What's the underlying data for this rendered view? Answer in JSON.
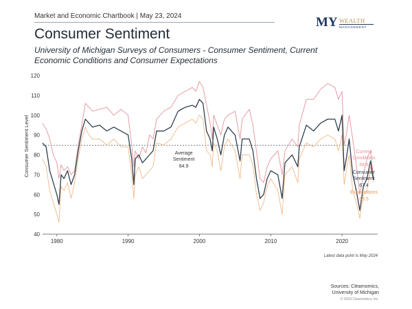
{
  "header": {
    "chartbook": "Market and Economic Chartbook | May 23, 2024",
    "title": "Consumer Sentiment",
    "subtitle": "University of Michigan Surveys of Consumers - Consumer Sentiment, Current Economic Conditions and Consumer Expectations"
  },
  "logo": {
    "my": "MY",
    "wealth": "WEALTH",
    "management": "MANAGEMENT"
  },
  "footer": {
    "note": "Latest data point is May 2024",
    "sources_line1": "Sources: Clearnomics,",
    "sources_line2": "University of Michigan",
    "copyright": "© 2024 Clearnomics, Inc."
  },
  "chart_data": {
    "type": "line",
    "title": "",
    "xlabel": "",
    "ylabel": "Consumer Sentiment Level",
    "xlim": [
      1978,
      2025
    ],
    "ylim": [
      40,
      120
    ],
    "yticks": [
      40,
      50,
      60,
      70,
      80,
      90,
      100,
      110,
      120
    ],
    "xticks": [
      1980,
      1990,
      2000,
      2010,
      2020
    ],
    "grid": false,
    "colors": {
      "current": "#e2929a",
      "sentiment": "#2f3d4c",
      "expectations": "#f0b98a",
      "average": "#4b5866"
    },
    "average": {
      "value": 84.9,
      "label_line1": "Average",
      "label_line2": "Sentiment",
      "value_label": "84.9"
    },
    "end_labels": [
      {
        "series": "current",
        "line1": "Current",
        "line2": "Conditions",
        "value": "68.8"
      },
      {
        "series": "sentiment",
        "line1": "Consumer",
        "line2": "Sentiment",
        "value": "67.4"
      },
      {
        "series": "expectations",
        "line1": "Expectations",
        "line2": "",
        "value": "66.5"
      }
    ],
    "x": [
      1978,
      1978.5,
      1979,
      1979.5,
      1980,
      1980.3,
      1980.6,
      1981,
      1981.5,
      1982,
      1982.5,
      1983,
      1983.5,
      1984,
      1984.5,
      1985,
      1986,
      1987,
      1988,
      1989,
      1990,
      1990.5,
      1990.8,
      1991,
      1991.5,
      1992,
      1992.5,
      1993,
      1993.5,
      1994,
      1995,
      1996,
      1997,
      1998,
      1999,
      1999.5,
      2000,
      2000.5,
      2001,
      2001.5,
      2001.8,
      2002,
      2002.5,
      2003,
      2003.5,
      2004,
      2005,
      2005.7,
      2006,
      2007,
      2007.5,
      2008,
      2008.5,
      2009,
      2009.5,
      2010,
      2011,
      2011.6,
      2012,
      2013,
      2013.8,
      2014,
      2015,
      2016,
      2017,
      2018,
      2019,
      2019.5,
      2020,
      2020.3,
      2020.6,
      2021,
      2021.5,
      2022,
      2022.5,
      2023,
      2023.5,
      2024,
      2024.4
    ],
    "series": [
      {
        "key": "current",
        "values": [
          96,
          93,
          88,
          80,
          76,
          68,
          75,
          72,
          74,
          70,
          72,
          85,
          95,
          106,
          104,
          102,
          103,
          104,
          100,
          103,
          100,
          85,
          74,
          82,
          78,
          84,
          81,
          90,
          88,
          98,
          102,
          104,
          110,
          112,
          114,
          112,
          117,
          114,
          105,
          96,
          88,
          100,
          95,
          90,
          98,
          100,
          102,
          88,
          98,
          103,
          95,
          82,
          68,
          66,
          74,
          78,
          82,
          70,
          82,
          88,
          84,
          95,
          108,
          108,
          113,
          116,
          114,
          108,
          112,
          85,
          90,
          100,
          88,
          75,
          60,
          70,
          78,
          82,
          68.8
        ]
      },
      {
        "key": "sentiment",
        "values": [
          86,
          84,
          72,
          66,
          60,
          55,
          70,
          68,
          72,
          65,
          70,
          82,
          92,
          98,
          96,
          94,
          95,
          92,
          94,
          92,
          90,
          78,
          65,
          78,
          80,
          76,
          78,
          80,
          82,
          92,
          92,
          94,
          102,
          104,
          105,
          104,
          108,
          106,
          92,
          88,
          82,
          94,
          88,
          80,
          90,
          94,
          90,
          77,
          88,
          88,
          82,
          68,
          58,
          60,
          68,
          72,
          70,
          58,
          76,
          80,
          74,
          84,
          95,
          92,
          96,
          98,
          98,
          92,
          100,
          72,
          78,
          88,
          70,
          62,
          52,
          64,
          68,
          77,
          67.4
        ]
      },
      {
        "key": "expectations",
        "values": [
          78,
          74,
          62,
          56,
          50,
          46,
          64,
          62,
          66,
          58,
          66,
          78,
          88,
          94,
          90,
          88,
          88,
          85,
          88,
          84,
          84,
          70,
          58,
          70,
          74,
          68,
          70,
          72,
          74,
          86,
          85,
          88,
          94,
          96,
          98,
          96,
          100,
          98,
          82,
          80,
          74,
          86,
          82,
          72,
          84,
          88,
          82,
          68,
          80,
          80,
          75,
          60,
          52,
          56,
          64,
          68,
          62,
          50,
          70,
          74,
          66,
          78,
          86,
          84,
          88,
          90,
          88,
          82,
          90,
          65,
          72,
          80,
          62,
          56,
          48,
          60,
          62,
          74,
          66.5
        ]
      }
    ]
  }
}
